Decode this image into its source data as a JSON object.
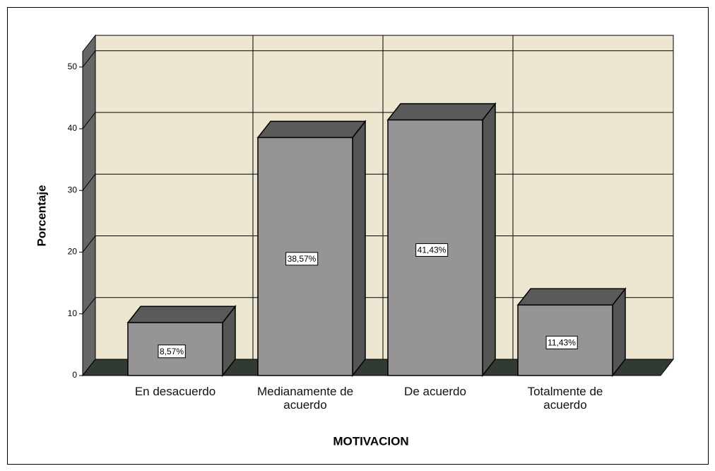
{
  "chart_data": {
    "type": "bar3d",
    "x_label": "MOTIVACION",
    "y_label": "Porcentaje",
    "categories": [
      "En desacuerdo",
      "Medianamente de acuerdo",
      "De acuerdo",
      "Totalmente de acuerdo"
    ],
    "values": [
      8.57,
      38.57,
      41.43,
      11.43
    ],
    "value_labels": [
      "8,57%",
      "38,57%",
      "41,43%",
      "11,43%"
    ],
    "color": "#969494",
    "ylim": [
      0,
      52.5
    ],
    "yticks": [
      0,
      10,
      20,
      30,
      40,
      50
    ],
    "grid": true
  }
}
